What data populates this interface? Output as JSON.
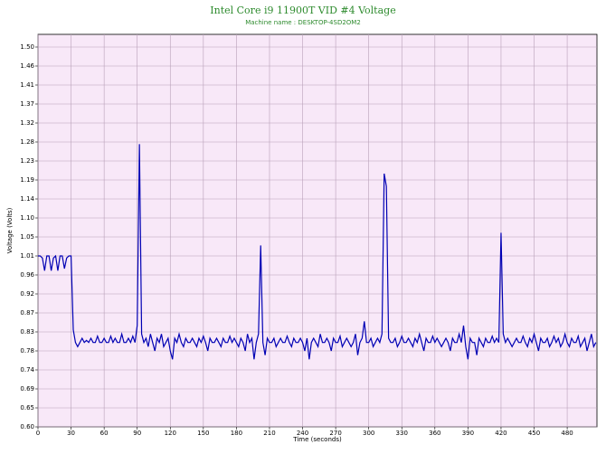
{
  "chart_data": {
    "type": "line",
    "title": "Intel Core i9 11900T VID #4 Voltage",
    "subtitle": "Machine name : DESKTOP-4SD2OM2",
    "x_label": "Time (seconds)",
    "y_label": "Voltage (Volts)",
    "color": "#0000b4",
    "grid": true,
    "xlim": [
      0,
      507
    ],
    "ylim": [
      0.6,
      1.53
    ],
    "xticks": [
      0,
      30,
      60,
      90,
      120,
      150,
      180,
      210,
      240,
      270,
      300,
      330,
      360,
      390,
      420,
      450,
      480
    ],
    "yticks": [
      {
        "value": 0.6,
        "label": "0.60"
      },
      {
        "value": 0.645,
        "label": "0.65"
      },
      0.69,
      {
        "value": 0.735,
        "label": "0.74"
      },
      0.78,
      {
        "value": 0.825,
        "label": "0.83"
      },
      0.87,
      {
        "value": 0.915,
        "label": "0.92"
      },
      0.96,
      {
        "value": 1.005,
        "label": "1.01"
      },
      1.05,
      {
        "value": 1.095,
        "label": "1.10"
      },
      1.14,
      {
        "value": 1.185,
        "label": "1.19"
      },
      1.23,
      {
        "value": 1.275,
        "label": "1.28"
      },
      1.32,
      {
        "value": 1.365,
        "label": "1.37"
      },
      1.41,
      {
        "value": 1.455,
        "label": "1.46"
      },
      {
        "value": 1.5,
        "label": "1.50"
      }
    ],
    "x": [
      0,
      2,
      4,
      6,
      8,
      10,
      12,
      14,
      16,
      18,
      20,
      22,
      24,
      26,
      28,
      30,
      32,
      34,
      36,
      38,
      40,
      42,
      44,
      46,
      48,
      50,
      52,
      54,
      56,
      58,
      60,
      62,
      64,
      66,
      68,
      70,
      72,
      74,
      76,
      78,
      80,
      82,
      84,
      86,
      88,
      90,
      92,
      94,
      96,
      98,
      100,
      102,
      104,
      106,
      108,
      110,
      112,
      114,
      116,
      118,
      120,
      122,
      124,
      126,
      128,
      130,
      132,
      134,
      136,
      138,
      140,
      142,
      144,
      146,
      148,
      150,
      152,
      154,
      156,
      158,
      160,
      162,
      164,
      166,
      168,
      170,
      172,
      174,
      176,
      178,
      180,
      182,
      184,
      186,
      188,
      190,
      192,
      194,
      196,
      198,
      200,
      202,
      204,
      206,
      208,
      210,
      212,
      214,
      216,
      218,
      220,
      222,
      224,
      226,
      228,
      230,
      232,
      234,
      236,
      238,
      240,
      242,
      244,
      246,
      248,
      250,
      252,
      254,
      256,
      258,
      260,
      262,
      264,
      266,
      268,
      270,
      272,
      274,
      276,
      278,
      280,
      282,
      284,
      286,
      288,
      290,
      292,
      294,
      296,
      298,
      300,
      302,
      304,
      306,
      308,
      310,
      312,
      314,
      316,
      318,
      320,
      322,
      324,
      326,
      328,
      330,
      332,
      334,
      336,
      338,
      340,
      342,
      344,
      346,
      348,
      350,
      352,
      354,
      356,
      358,
      360,
      362,
      364,
      366,
      368,
      370,
      372,
      374,
      376,
      378,
      380,
      382,
      384,
      386,
      388,
      390,
      392,
      394,
      396,
      398,
      400,
      402,
      404,
      406,
      408,
      410,
      412,
      414,
      416,
      418,
      420,
      422,
      424,
      426,
      428,
      430,
      432,
      434,
      436,
      438,
      440,
      442,
      444,
      446,
      448,
      450,
      452,
      454,
      456,
      458,
      460,
      462,
      464,
      466,
      468,
      470,
      472,
      474,
      476,
      478,
      480,
      482,
      484,
      486,
      488,
      490,
      492,
      494,
      496,
      498,
      500,
      502,
      504,
      506
    ],
    "values": [
      1.005,
      1.005,
      1.0,
      0.97,
      1.005,
      1.005,
      0.97,
      1.0,
      1.005,
      0.97,
      1.005,
      1.005,
      0.975,
      1.0,
      1.005,
      1.005,
      0.83,
      0.8,
      0.79,
      0.8,
      0.81,
      0.8,
      0.805,
      0.8,
      0.81,
      0.8,
      0.8,
      0.815,
      0.8,
      0.8,
      0.81,
      0.8,
      0.8,
      0.815,
      0.8,
      0.81,
      0.8,
      0.8,
      0.82,
      0.8,
      0.8,
      0.81,
      0.8,
      0.815,
      0.8,
      0.84,
      1.27,
      0.82,
      0.8,
      0.81,
      0.79,
      0.82,
      0.8,
      0.78,
      0.81,
      0.8,
      0.82,
      0.79,
      0.8,
      0.81,
      0.78,
      0.76,
      0.81,
      0.8,
      0.82,
      0.8,
      0.79,
      0.81,
      0.8,
      0.8,
      0.81,
      0.8,
      0.79,
      0.81,
      0.8,
      0.815,
      0.8,
      0.78,
      0.81,
      0.8,
      0.8,
      0.81,
      0.8,
      0.79,
      0.81,
      0.8,
      0.8,
      0.815,
      0.8,
      0.81,
      0.8,
      0.79,
      0.81,
      0.8,
      0.78,
      0.82,
      0.8,
      0.81,
      0.76,
      0.8,
      0.82,
      1.03,
      0.8,
      0.77,
      0.81,
      0.8,
      0.8,
      0.81,
      0.79,
      0.8,
      0.81,
      0.8,
      0.8,
      0.815,
      0.8,
      0.79,
      0.81,
      0.8,
      0.8,
      0.81,
      0.8,
      0.78,
      0.81,
      0.76,
      0.8,
      0.81,
      0.8,
      0.79,
      0.82,
      0.8,
      0.8,
      0.81,
      0.8,
      0.78,
      0.81,
      0.8,
      0.8,
      0.815,
      0.79,
      0.8,
      0.81,
      0.8,
      0.79,
      0.8,
      0.82,
      0.77,
      0.8,
      0.81,
      0.85,
      0.8,
      0.8,
      0.81,
      0.79,
      0.8,
      0.81,
      0.8,
      0.82,
      1.2,
      1.17,
      0.81,
      0.8,
      0.8,
      0.81,
      0.79,
      0.8,
      0.815,
      0.8,
      0.8,
      0.81,
      0.8,
      0.79,
      0.81,
      0.8,
      0.82,
      0.8,
      0.78,
      0.81,
      0.8,
      0.8,
      0.815,
      0.8,
      0.81,
      0.8,
      0.79,
      0.8,
      0.81,
      0.8,
      0.78,
      0.81,
      0.8,
      0.8,
      0.82,
      0.8,
      0.84,
      0.79,
      0.76,
      0.81,
      0.8,
      0.8,
      0.77,
      0.81,
      0.8,
      0.79,
      0.81,
      0.8,
      0.8,
      0.815,
      0.8,
      0.81,
      0.8,
      1.06,
      0.82,
      0.8,
      0.81,
      0.8,
      0.79,
      0.8,
      0.81,
      0.8,
      0.8,
      0.815,
      0.8,
      0.79,
      0.81,
      0.8,
      0.82,
      0.8,
      0.78,
      0.81,
      0.8,
      0.8,
      0.81,
      0.79,
      0.8,
      0.815,
      0.8,
      0.81,
      0.79,
      0.8,
      0.82,
      0.8,
      0.79,
      0.81,
      0.8,
      0.8,
      0.815,
      0.79,
      0.8,
      0.81,
      0.78,
      0.8,
      0.82,
      0.79,
      0.8
    ]
  }
}
